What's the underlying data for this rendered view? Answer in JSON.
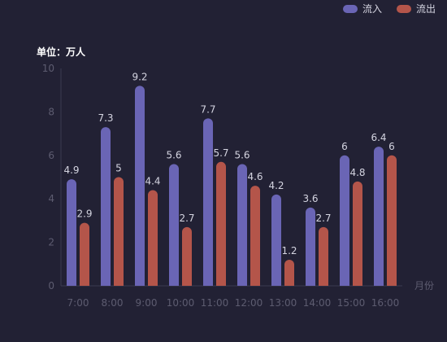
{
  "unit_label": "单位：万人",
  "legend": {
    "inflow": "流入",
    "outflow": "流出"
  },
  "colors": {
    "inflow": "#6a65b5",
    "outflow": "#b4554a",
    "axis_text": "#5d5c70",
    "label_text": "#d4d4e0",
    "background": "#222134"
  },
  "chart_data": {
    "type": "bar",
    "categories": [
      "7:00",
      "8:00",
      "9:00",
      "10:00",
      "11:00",
      "12:00",
      "13:00",
      "14:00",
      "15:00",
      "16:00"
    ],
    "series": [
      {
        "name": "流入",
        "values": [
          4.9,
          7.3,
          9.2,
          5.6,
          7.7,
          5.6,
          4.2,
          3.6,
          6,
          6.4
        ]
      },
      {
        "name": "流出",
        "values": [
          2.9,
          5,
          4.4,
          2.7,
          5.7,
          4.6,
          1.2,
          2.7,
          4.8,
          6
        ]
      }
    ],
    "ylim": [
      0,
      10
    ],
    "yticks": [
      0,
      2,
      4,
      6,
      8,
      10
    ],
    "xlabel": "月份",
    "ylabel": "单位：万人",
    "grid": false,
    "legend_position": "top-right"
  }
}
